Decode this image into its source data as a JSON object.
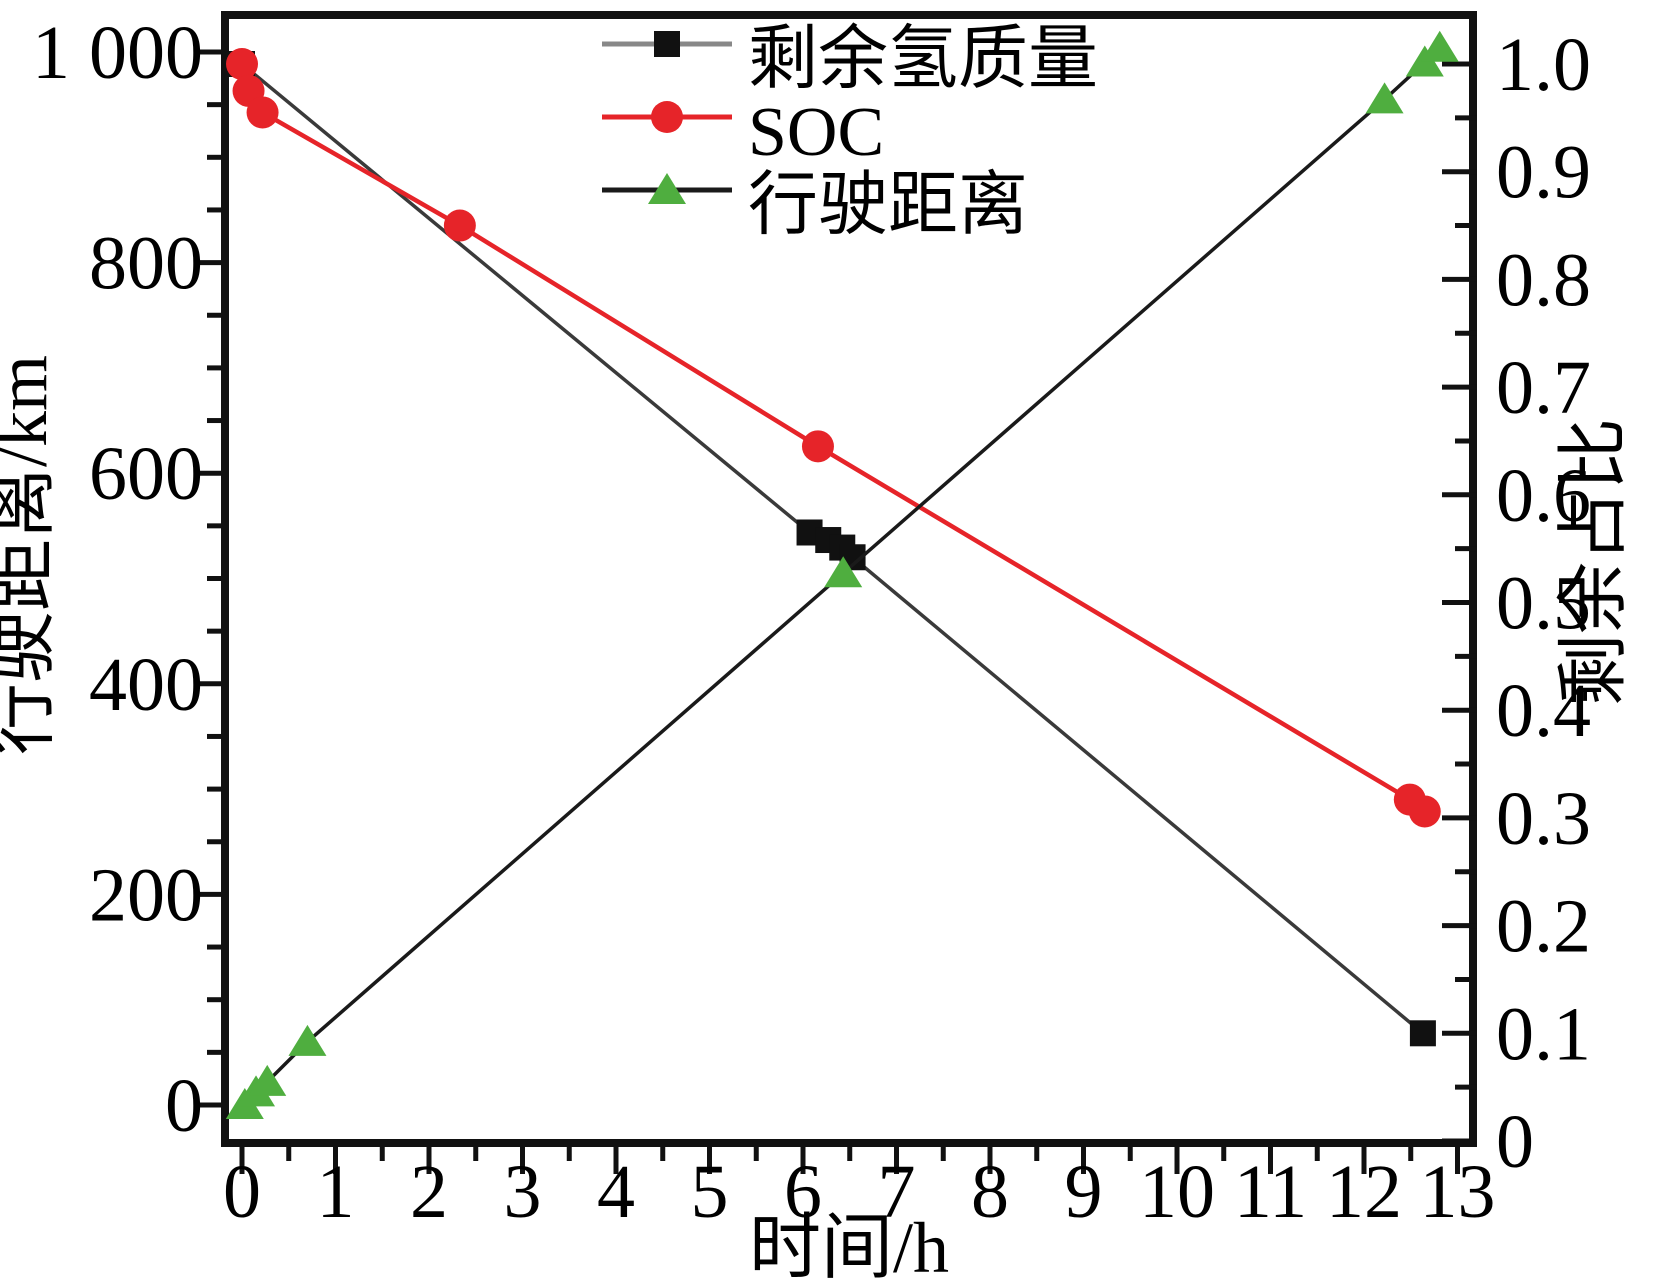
{
  "chart_data": {
    "type": "line",
    "title": "",
    "x_axis": {
      "label": "时间/h",
      "min": 0,
      "max": 13,
      "tick_values": [
        0,
        1,
        2,
        3,
        4,
        5,
        6,
        7,
        8,
        9,
        10,
        11,
        12,
        13
      ],
      "tick_labels": [
        "0",
        "1",
        "2",
        "3",
        "4",
        "5",
        "6",
        "7",
        "8",
        "9",
        "10",
        "11",
        "12",
        "13"
      ],
      "minor_step": 0.5
    },
    "left_y_axis": {
      "label": "行驶距离/km",
      "min": 0,
      "max": 1000,
      "tick_values": [
        0,
        200,
        400,
        600,
        800,
        1000
      ],
      "tick_labels": [
        "0",
        "200",
        "400",
        "600",
        "800",
        "1 000"
      ],
      "minor_step": 50
    },
    "right_y_axis": {
      "label": "剩余占比",
      "min": 0,
      "max": 1.0,
      "tick_values": [
        0,
        0.1,
        0.2,
        0.3,
        0.4,
        0.5,
        0.6,
        0.7,
        0.8,
        0.9,
        1.0
      ],
      "tick_labels": [
        "0",
        "0.1",
        "0.2",
        "0.3",
        "0.4",
        "0.5",
        "0.6",
        "0.7",
        "0.8",
        "0.9",
        "1.0"
      ],
      "minor_step": 0.05
    },
    "legend": {
      "position": "top-center",
      "entries": [
        {
          "id": "remaining-hydrogen-mass",
          "label": "剩余氢质量",
          "marker": "square",
          "marker_color": "#111111",
          "line_color": "#888888"
        },
        {
          "id": "soc",
          "label": "SOC",
          "marker": "circle",
          "marker_color": "#e62429",
          "line_color": "#e62429"
        },
        {
          "id": "driving-distance",
          "label": "行驶距离",
          "marker": "triangle",
          "marker_color": "#4fae3f",
          "line_color": "#1a1a1a"
        }
      ]
    },
    "series": [
      {
        "id": "remaining-hydrogen-mass",
        "name": "剩余氢质量",
        "y_axis": "right",
        "marker": "square",
        "marker_color": "#111111",
        "line_color": "#3a3a3a",
        "points": [
          [
            0,
            1.0
          ],
          [
            6.07,
            0.565
          ],
          [
            6.27,
            0.558
          ],
          [
            6.42,
            0.551
          ],
          [
            6.53,
            0.542
          ],
          [
            12.63,
            0.1
          ]
        ]
      },
      {
        "id": "soc",
        "name": "SOC",
        "y_axis": "right",
        "marker": "circle",
        "marker_color": "#e62429",
        "line_color": "#e62429",
        "points": [
          [
            0,
            1.0
          ],
          [
            0.07,
            0.975
          ],
          [
            0.22,
            0.955
          ],
          [
            2.33,
            0.85
          ],
          [
            6.16,
            0.645
          ],
          [
            12.49,
            0.317
          ],
          [
            12.65,
            0.306
          ]
        ]
      },
      {
        "id": "driving-distance",
        "name": "行驶距离",
        "y_axis": "left",
        "marker": "triangle",
        "marker_color": "#4fae3f",
        "line_color": "#1a1a1a",
        "points": [
          [
            0.03,
            0
          ],
          [
            0.15,
            12
          ],
          [
            0.27,
            22
          ],
          [
            0.7,
            60
          ],
          [
            6.43,
            505
          ],
          [
            12.22,
            955
          ],
          [
            12.65,
            990
          ],
          [
            12.81,
            1004
          ]
        ]
      }
    ]
  }
}
